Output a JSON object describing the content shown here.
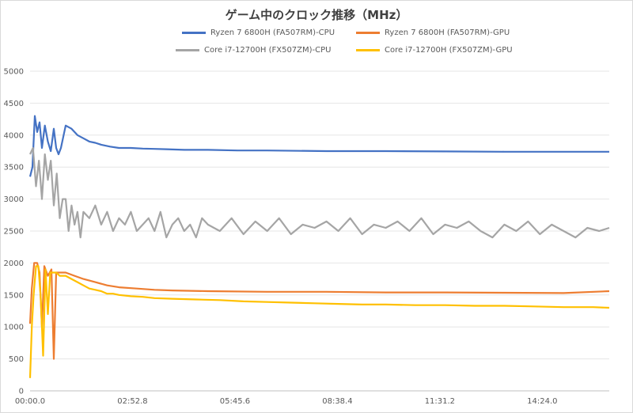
{
  "chart_data": {
    "type": "line",
    "title": "ゲーム中のクロック推移（MHz）",
    "xlabel": "",
    "ylabel": "",
    "ylim": [
      0,
      5000
    ],
    "yticks": [
      0,
      500,
      1000,
      1500,
      2000,
      2500,
      3000,
      3500,
      4000,
      4500,
      5000
    ],
    "xlim_seconds": [
      0,
      977
    ],
    "xtick_labels": [
      "00:00.0",
      "02:52.8",
      "05:45.6",
      "08:38.4",
      "11:31.2",
      "14:24.0"
    ],
    "grid": "horizontal",
    "legend_position": "top",
    "series": [
      {
        "name": "Ryzen 7 6800H (FA507RM)-CPU",
        "color": "#4472c4",
        "points": [
          [
            0,
            3350
          ],
          [
            4,
            3500
          ],
          [
            8,
            4300
          ],
          [
            12,
            4050
          ],
          [
            16,
            4200
          ],
          [
            20,
            3800
          ],
          [
            25,
            4150
          ],
          [
            30,
            3900
          ],
          [
            35,
            3750
          ],
          [
            40,
            4100
          ],
          [
            44,
            3800
          ],
          [
            48,
            3700
          ],
          [
            52,
            3800
          ],
          [
            60,
            4150
          ],
          [
            70,
            4100
          ],
          [
            80,
            4000
          ],
          [
            90,
            3950
          ],
          [
            100,
            3900
          ],
          [
            110,
            3880
          ],
          [
            120,
            3850
          ],
          [
            135,
            3820
          ],
          [
            150,
            3800
          ],
          [
            170,
            3800
          ],
          [
            190,
            3790
          ],
          [
            210,
            3785
          ],
          [
            230,
            3780
          ],
          [
            260,
            3770
          ],
          [
            300,
            3770
          ],
          [
            350,
            3760
          ],
          [
            400,
            3760
          ],
          [
            500,
            3750
          ],
          [
            600,
            3750
          ],
          [
            700,
            3745
          ],
          [
            800,
            3740
          ],
          [
            900,
            3740
          ],
          [
            977,
            3740
          ]
        ]
      },
      {
        "name": "Ryzen 7 6800H (FA507RM)-GPU",
        "color": "#ed7d31",
        "points": [
          [
            0,
            1050
          ],
          [
            3,
            1600
          ],
          [
            7,
            2000
          ],
          [
            12,
            2000
          ],
          [
            16,
            1850
          ],
          [
            20,
            1000
          ],
          [
            24,
            1950
          ],
          [
            30,
            1800
          ],
          [
            36,
            1900
          ],
          [
            40,
            500
          ],
          [
            44,
            1850
          ],
          [
            50,
            1850
          ],
          [
            60,
            1850
          ],
          [
            75,
            1800
          ],
          [
            90,
            1750
          ],
          [
            110,
            1700
          ],
          [
            130,
            1650
          ],
          [
            150,
            1620
          ],
          [
            180,
            1600
          ],
          [
            210,
            1580
          ],
          [
            240,
            1570
          ],
          [
            300,
            1560
          ],
          [
            400,
            1550
          ],
          [
            500,
            1550
          ],
          [
            600,
            1540
          ],
          [
            700,
            1540
          ],
          [
            800,
            1535
          ],
          [
            900,
            1530
          ],
          [
            977,
            1560
          ]
        ]
      },
      {
        "name": "Core i7-12700H (FX507ZM)-CPU",
        "color": "#a5a5a5",
        "points": [
          [
            0,
            3700
          ],
          [
            5,
            3800
          ],
          [
            10,
            3200
          ],
          [
            15,
            3600
          ],
          [
            20,
            3000
          ],
          [
            25,
            3700
          ],
          [
            30,
            3300
          ],
          [
            35,
            3600
          ],
          [
            40,
            2900
          ],
          [
            45,
            3400
          ],
          [
            50,
            2700
          ],
          [
            55,
            3000
          ],
          [
            60,
            3000
          ],
          [
            65,
            2500
          ],
          [
            70,
            2900
          ],
          [
            75,
            2600
          ],
          [
            80,
            2800
          ],
          [
            85,
            2400
          ],
          [
            90,
            2800
          ],
          [
            100,
            2700
          ],
          [
            110,
            2900
          ],
          [
            120,
            2600
          ],
          [
            130,
            2800
          ],
          [
            140,
            2500
          ],
          [
            150,
            2700
          ],
          [
            160,
            2600
          ],
          [
            170,
            2800
          ],
          [
            180,
            2500
          ],
          [
            190,
            2600
          ],
          [
            200,
            2700
          ],
          [
            210,
            2500
          ],
          [
            220,
            2800
          ],
          [
            230,
            2400
          ],
          [
            240,
            2600
          ],
          [
            250,
            2700
          ],
          [
            260,
            2500
          ],
          [
            270,
            2600
          ],
          [
            280,
            2400
          ],
          [
            290,
            2700
          ],
          [
            300,
            2600
          ],
          [
            320,
            2500
          ],
          [
            340,
            2700
          ],
          [
            360,
            2450
          ],
          [
            380,
            2650
          ],
          [
            400,
            2500
          ],
          [
            420,
            2700
          ],
          [
            440,
            2450
          ],
          [
            460,
            2600
          ],
          [
            480,
            2550
          ],
          [
            500,
            2650
          ],
          [
            520,
            2500
          ],
          [
            540,
            2700
          ],
          [
            560,
            2450
          ],
          [
            580,
            2600
          ],
          [
            600,
            2550
          ],
          [
            620,
            2650
          ],
          [
            640,
            2500
          ],
          [
            660,
            2700
          ],
          [
            680,
            2450
          ],
          [
            700,
            2600
          ],
          [
            720,
            2550
          ],
          [
            740,
            2650
          ],
          [
            760,
            2500
          ],
          [
            780,
            2400
          ],
          [
            800,
            2600
          ],
          [
            820,
            2500
          ],
          [
            840,
            2650
          ],
          [
            860,
            2450
          ],
          [
            880,
            2600
          ],
          [
            900,
            2500
          ],
          [
            920,
            2400
          ],
          [
            940,
            2550
          ],
          [
            960,
            2500
          ],
          [
            977,
            2550
          ]
        ]
      },
      {
        "name": "Core i7-12700H (FX507ZM)-GPU",
        "color": "#ffc000",
        "points": [
          [
            0,
            200
          ],
          [
            3,
            1000
          ],
          [
            6,
            1500
          ],
          [
            10,
            1950
          ],
          [
            14,
            1950
          ],
          [
            18,
            1450
          ],
          [
            22,
            550
          ],
          [
            26,
            1900
          ],
          [
            30,
            1200
          ],
          [
            34,
            1850
          ],
          [
            38,
            1850
          ],
          [
            44,
            1850
          ],
          [
            50,
            1800
          ],
          [
            60,
            1800
          ],
          [
            70,
            1750
          ],
          [
            80,
            1700
          ],
          [
            90,
            1650
          ],
          [
            100,
            1600
          ],
          [
            110,
            1580
          ],
          [
            120,
            1560
          ],
          [
            130,
            1520
          ],
          [
            140,
            1520
          ],
          [
            150,
            1500
          ],
          [
            170,
            1480
          ],
          [
            190,
            1470
          ],
          [
            210,
            1450
          ],
          [
            240,
            1440
          ],
          [
            280,
            1430
          ],
          [
            320,
            1420
          ],
          [
            360,
            1400
          ],
          [
            400,
            1390
          ],
          [
            440,
            1380
          ],
          [
            480,
            1370
          ],
          [
            520,
            1360
          ],
          [
            560,
            1350
          ],
          [
            600,
            1350
          ],
          [
            650,
            1340
          ],
          [
            700,
            1340
          ],
          [
            750,
            1330
          ],
          [
            800,
            1330
          ],
          [
            850,
            1320
          ],
          [
            900,
            1310
          ],
          [
            950,
            1310
          ],
          [
            977,
            1300
          ]
        ]
      }
    ]
  }
}
